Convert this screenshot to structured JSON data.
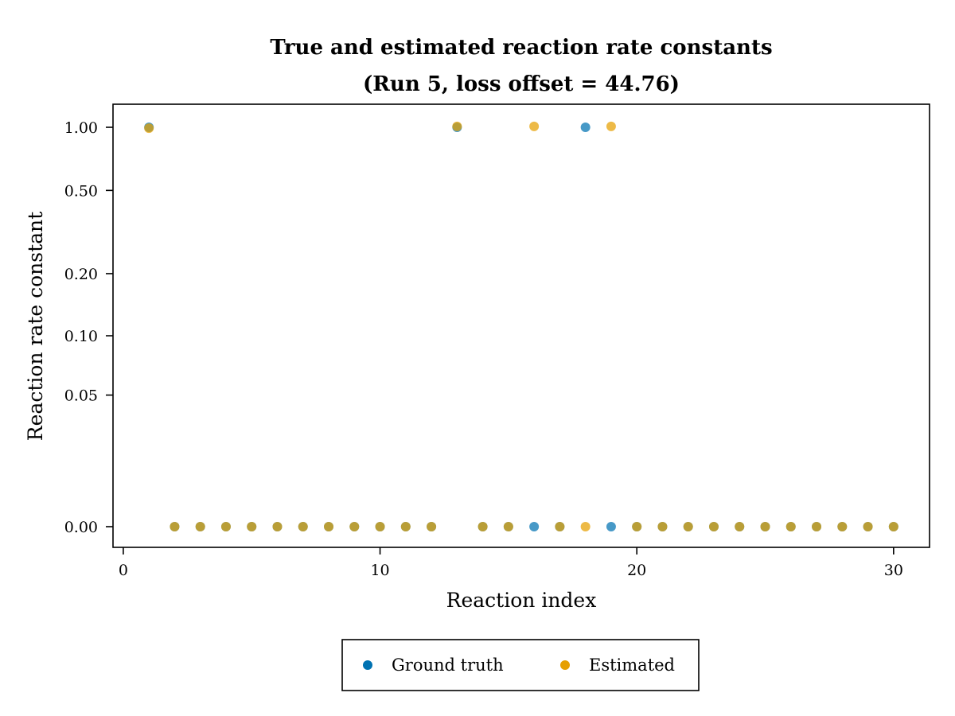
{
  "chart_data": {
    "type": "scatter",
    "title": "True and estimated reaction rate constants",
    "subtitle": "(Run 5, loss offset = 44.76)",
    "xlabel": "Reaction index",
    "ylabel": "Reaction rate constant",
    "x_ticks": [
      0,
      10,
      20,
      30
    ],
    "x_tick_labels": [
      "0",
      "10",
      "20",
      "30"
    ],
    "y_ticks": [
      0.0,
      0.05,
      0.1,
      0.2,
      0.5,
      1.0
    ],
    "y_tick_labels": [
      "0.00",
      "0.05",
      "0.10",
      "0.20",
      "0.50",
      "1.00"
    ],
    "y_scale": "pseudo-log",
    "xlim": [
      -0.4,
      31.4
    ],
    "grid": false,
    "legend_position": "bottom-center",
    "x": [
      1,
      2,
      3,
      4,
      5,
      6,
      7,
      8,
      9,
      10,
      11,
      12,
      13,
      14,
      15,
      16,
      17,
      18,
      19,
      20,
      21,
      22,
      23,
      24,
      25,
      26,
      27,
      28,
      29,
      30
    ],
    "series": [
      {
        "name": "Ground truth",
        "color": "#0072b2",
        "values": [
          1.0,
          0,
          0,
          0,
          0,
          0,
          0,
          0,
          0,
          0,
          0,
          0,
          1.0,
          0,
          0,
          0,
          0,
          1.0,
          0,
          0,
          0,
          0,
          0,
          0,
          0,
          0,
          0,
          0,
          0,
          0
        ]
      },
      {
        "name": "Estimated",
        "color": "#e69f00",
        "values": [
          0.99,
          0,
          0,
          0,
          0,
          0,
          0,
          0,
          0,
          0,
          0,
          0,
          1.01,
          0,
          0,
          1.01,
          0,
          0,
          1.01,
          0,
          0,
          0,
          0,
          0,
          0,
          0,
          0,
          0,
          0,
          0
        ]
      }
    ]
  }
}
